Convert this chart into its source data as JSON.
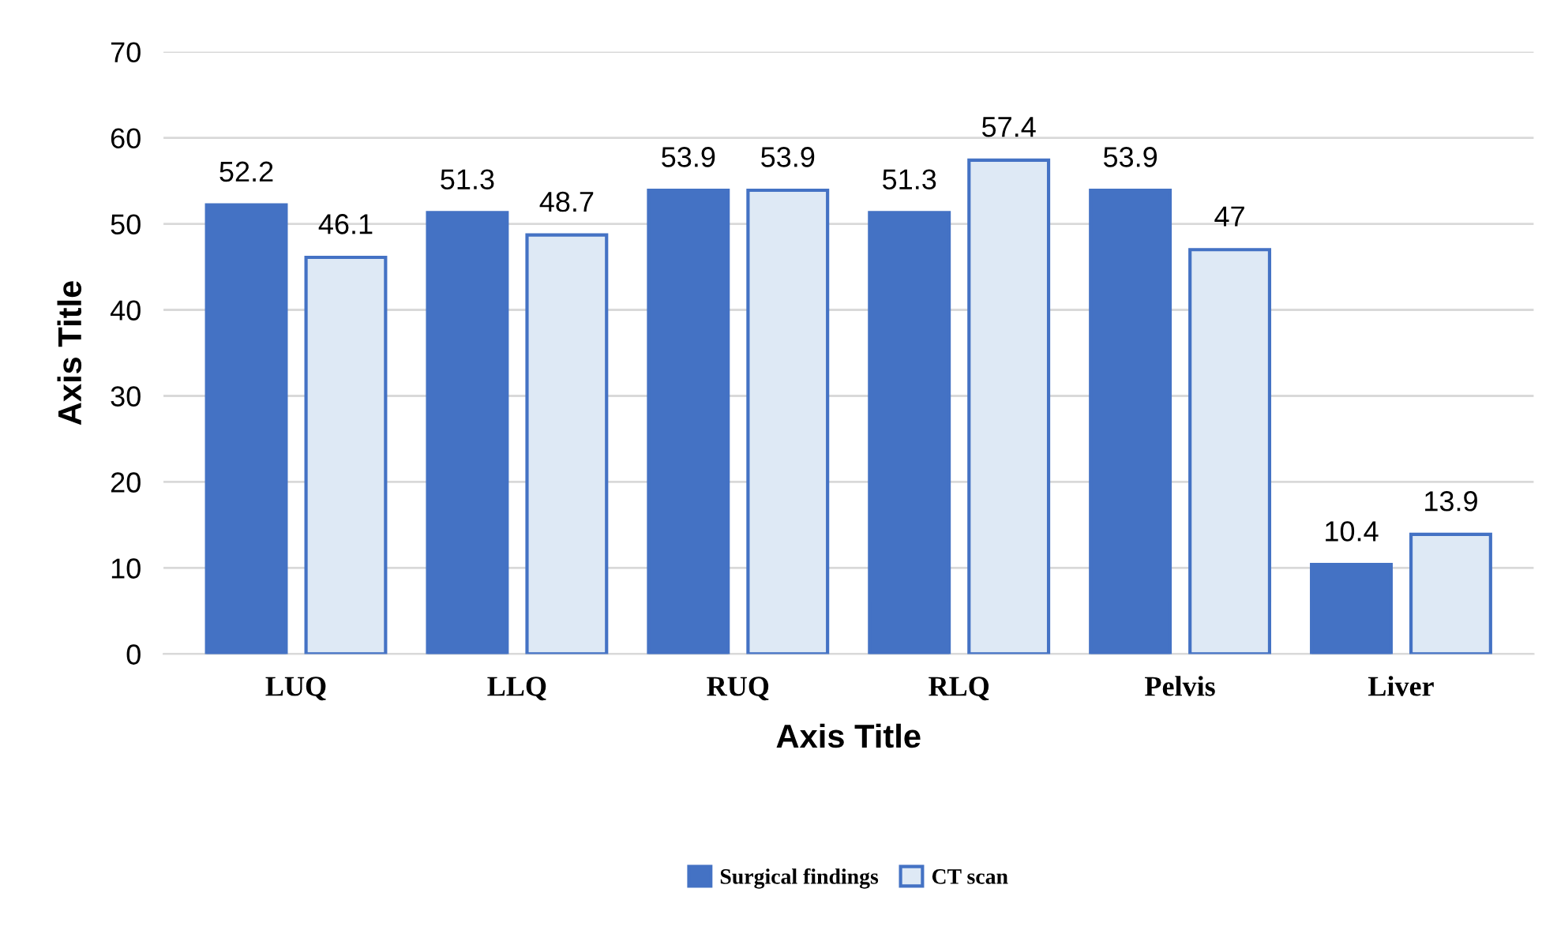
{
  "chart_data": {
    "type": "bar",
    "xlabel": "Axis Title",
    "ylabel": "Axis Title",
    "categories": [
      "LUQ",
      "LLQ",
      "RUQ",
      "RLQ",
      "Pelvis",
      "Liver"
    ],
    "series": [
      {
        "name": "Surgical findings",
        "color": "#4472c4",
        "values": [
          52.2,
          51.3,
          53.9,
          51.3,
          53.9,
          10.4
        ]
      },
      {
        "name": "CT scan",
        "color": "#dee9f5",
        "values": [
          46.1,
          48.7,
          53.9,
          57.4,
          47,
          13.9
        ]
      }
    ],
    "ylim": [
      0,
      70
    ],
    "yticks": [
      0,
      10,
      20,
      30,
      40,
      50,
      60,
      70
    ],
    "grid": "y",
    "legend": "bottom",
    "data_labels": true
  }
}
